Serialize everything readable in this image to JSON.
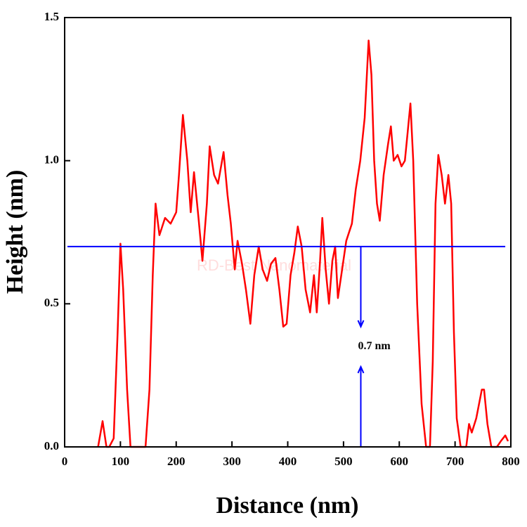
{
  "chart_data": {
    "type": "line",
    "xlabel": "Distance (nm)",
    "ylabel": "Height (nm)",
    "xlim": [
      0,
      800
    ],
    "xticks": [
      0,
      100,
      200,
      300,
      400,
      500,
      600,
      700,
      800
    ],
    "ylim": [
      0,
      1.5
    ],
    "yticks": [
      {
        "value": 0,
        "label": "0.0"
      },
      0.5,
      {
        "value": 1,
        "label": "1.0"
      },
      1.5
    ],
    "series": [
      {
        "color": "#ff0000",
        "x": [
          60,
          68,
          75,
          80,
          88,
          95,
          100,
          105,
          112,
          118,
          145,
          152,
          158,
          163,
          170,
          180,
          190,
          200,
          205,
          212,
          220,
          226,
          232,
          240,
          247,
          255,
          260,
          268,
          275,
          285,
          292,
          298,
          305,
          310,
          318,
          325,
          333,
          340,
          348,
          355,
          363,
          370,
          378,
          385,
          392,
          398,
          405,
          412,
          418,
          425,
          432,
          440,
          447,
          452,
          458,
          462,
          468,
          474,
          480,
          485,
          490,
          496,
          505,
          515,
          522,
          530,
          538,
          545,
          550,
          555,
          560,
          565,
          572,
          580,
          585,
          590,
          597,
          604,
          610,
          615,
          620,
          625,
          632,
          640,
          648,
          655,
          660,
          665,
          670,
          676,
          682,
          688,
          693,
          698,
          703,
          710,
          720,
          725,
          730,
          738,
          748,
          752,
          758,
          765,
          775,
          782,
          790,
          795
        ],
        "values": [
          0,
          0.09,
          0,
          0,
          0.03,
          0.4,
          0.71,
          0.55,
          0.2,
          0,
          0,
          0.2,
          0.6,
          0.85,
          0.74,
          0.8,
          0.78,
          0.82,
          0.95,
          1.16,
          1.0,
          0.82,
          0.96,
          0.8,
          0.65,
          0.85,
          1.05,
          0.95,
          0.92,
          1.03,
          0.88,
          0.78,
          0.62,
          0.72,
          0.64,
          0.55,
          0.43,
          0.6,
          0.7,
          0.62,
          0.58,
          0.64,
          0.66,
          0.55,
          0.42,
          0.43,
          0.6,
          0.68,
          0.77,
          0.7,
          0.55,
          0.47,
          0.6,
          0.47,
          0.65,
          0.8,
          0.62,
          0.5,
          0.65,
          0.7,
          0.52,
          0.6,
          0.72,
          0.78,
          0.9,
          1.0,
          1.15,
          1.42,
          1.3,
          1.0,
          0.85,
          0.79,
          0.95,
          1.06,
          1.12,
          1.0,
          1.02,
          0.98,
          1.0,
          1.1,
          1.2,
          1.0,
          0.5,
          0.15,
          0,
          0,
          0.3,
          0.85,
          1.02,
          0.95,
          0.85,
          0.95,
          0.85,
          0.4,
          0.1,
          0,
          0,
          0.08,
          0.05,
          0.1,
          0.2,
          0.2,
          0.08,
          0,
          0,
          0.02,
          0.04,
          0.02
        ]
      }
    ],
    "hline": {
      "value": 0.7,
      "color": "#0000ff",
      "xlim": [
        5,
        790
      ]
    },
    "annotation": {
      "text": "0.7 nm",
      "x": 531,
      "color": "#0000ff"
    },
    "watermark": "RD-Best Nanomaterial"
  }
}
